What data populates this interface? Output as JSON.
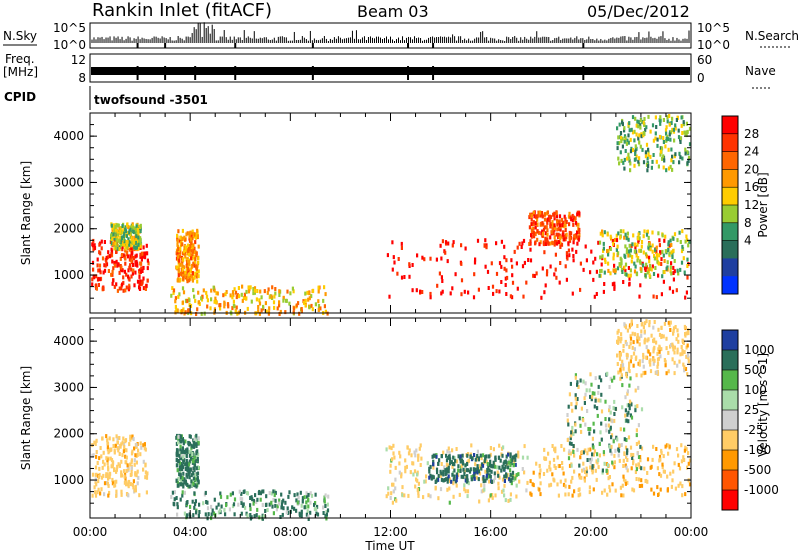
{
  "header": {
    "title": "Rankin Inlet (fitACF)",
    "beam": "Beam 03",
    "date": "05/Dec/2012"
  },
  "summary": {
    "nsky_label": "N.Sky",
    "nsearch_label": "N.Search",
    "freq_label_line1": "Freq.",
    "freq_label_line2": "[MHz]",
    "nave_label": "Nave",
    "cpid_label": "CPID",
    "cpid_value": "twofsound -3501",
    "nsky_ticks": [
      "10^5",
      "10^0"
    ],
    "nsearch_ticks": [
      "10^5",
      "10^0"
    ],
    "freq_ticks": [
      "12",
      "8"
    ],
    "nave_ticks": [
      "60",
      "0"
    ]
  },
  "axes": {
    "xlabel": "Time UT",
    "xticks": [
      "00:00",
      "04:00",
      "08:00",
      "12:00",
      "16:00",
      "20:00",
      "00:00"
    ],
    "ylabel": "Slant Range [km]",
    "yticks": [
      "1000",
      "2000",
      "3000",
      "4000"
    ]
  },
  "power_colorbar": {
    "label": "Power [dB]",
    "ticks": [
      "28",
      "24",
      "20",
      "16",
      "12",
      "8",
      "4"
    ],
    "colors": [
      "#ff0000",
      "#ff3300",
      "#ff6600",
      "#ff9900",
      "#ffcc00",
      "#99cc33",
      "#339966",
      "#2a6e5a",
      "#1f3fa0",
      "#0033ff"
    ]
  },
  "velocity_colorbar": {
    "label": "Velocity [m s^-1]",
    "ticks": [
      "1000",
      "500",
      "100",
      "25",
      "-25",
      "-100",
      "-500",
      "-1000"
    ],
    "colors": [
      "#1f3fa0",
      "#2a6e5a",
      "#55b84a",
      "#aaddaa",
      "#cfcfcf",
      "#ffcc66",
      "#ff9900",
      "#ff5500",
      "#ff0000"
    ]
  },
  "chart_data": [
    {
      "type": "heatmap",
      "panel": "power",
      "x_range_hours": [
        0,
        24
      ],
      "ylim": [
        180,
        4500
      ],
      "colorbar_range": [
        0,
        30
      ],
      "regions": [
        {
          "t": [
            0.0,
            2.3
          ],
          "r": [
            700,
            1800
          ],
          "value": 27
        },
        {
          "t": [
            0.8,
            2.0
          ],
          "r": [
            1600,
            2150
          ],
          "value": 14
        },
        {
          "t": [
            3.4,
            4.3
          ],
          "r": [
            900,
            2000
          ],
          "value": 20
        },
        {
          "t": [
            3.2,
            9.5
          ],
          "r": [
            200,
            800
          ],
          "value": 18
        },
        {
          "t": [
            11.8,
            24.0
          ],
          "r": [
            550,
            1800
          ],
          "value": 29
        },
        {
          "t": [
            17.5,
            19.5
          ],
          "r": [
            1700,
            2400
          ],
          "value": 24
        },
        {
          "t": [
            20.3,
            24.0
          ],
          "r": [
            1000,
            2000
          ],
          "value": 14
        },
        {
          "t": [
            21.0,
            24.0
          ],
          "r": [
            3300,
            4500
          ],
          "value": 12
        }
      ]
    },
    {
      "type": "heatmap",
      "panel": "velocity",
      "x_range_hours": [
        0,
        24
      ],
      "ylim": [
        180,
        4500
      ],
      "colorbar_range": [
        -1000,
        1000
      ],
      "regions": [
        {
          "t": [
            0.0,
            2.3
          ],
          "r": [
            700,
            2000
          ],
          "value": -300
        },
        {
          "t": [
            3.4,
            4.3
          ],
          "r": [
            900,
            2000
          ],
          "value": 200
        },
        {
          "t": [
            3.2,
            9.5
          ],
          "r": [
            200,
            800
          ],
          "value": 150
        },
        {
          "t": [
            11.8,
            17.5
          ],
          "r": [
            550,
            1800
          ],
          "value": -200
        },
        {
          "t": [
            13.5,
            17.0
          ],
          "r": [
            1000,
            1600
          ],
          "value": 300
        },
        {
          "t": [
            17.5,
            24.0
          ],
          "r": [
            700,
            1800
          ],
          "value": -400
        },
        {
          "t": [
            19.0,
            22.0
          ],
          "r": [
            1200,
            3400
          ],
          "value": 0
        },
        {
          "t": [
            21.0,
            24.0
          ],
          "r": [
            3300,
            4500
          ],
          "value": -300
        }
      ]
    }
  ]
}
